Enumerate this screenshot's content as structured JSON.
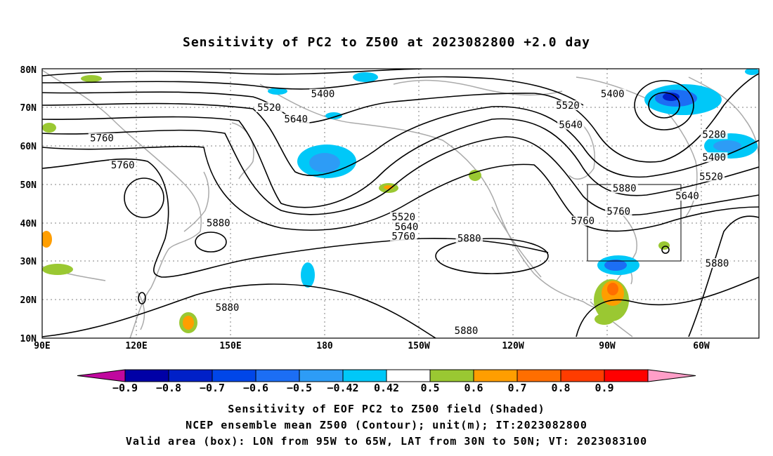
{
  "title": "Sensitivity of PC2 to Z500 at 2023082800 +2.0 day",
  "lat_labels": [
    "80N",
    "70N",
    "60N",
    "50N",
    "40N",
    "30N",
    "20N",
    "10N"
  ],
  "lon_labels": [
    "90E",
    "120E",
    "150E",
    "180",
    "150W",
    "120W",
    "90W",
    "60W"
  ],
  "contour_labels": [
    {
      "text": "5400",
      "lon": 184,
      "lat": 73.5
    },
    {
      "text": "5520",
      "lon": 166,
      "lat": 70
    },
    {
      "text": "5640",
      "lon": 175,
      "lat": 67
    },
    {
      "text": "5760",
      "lon": 110,
      "lat": 62
    },
    {
      "text": "5760",
      "lon": 117,
      "lat": 55
    },
    {
      "text": "5880",
      "lon": 149,
      "lat": 40
    },
    {
      "text": "5880",
      "lon": 152,
      "lat": 18
    },
    {
      "text": "5520",
      "lon": 266,
      "lat": 70.5
    },
    {
      "text": "5400",
      "lon": 281,
      "lat": 73.5
    },
    {
      "text": "5640",
      "lon": 267,
      "lat": 65.5
    },
    {
      "text": "5520",
      "lon": 211,
      "lat": 41.5
    },
    {
      "text": "5640",
      "lon": 212,
      "lat": 39
    },
    {
      "text": "5760",
      "lon": 211,
      "lat": 36.5
    },
    {
      "text": "5880",
      "lon": 233,
      "lat": 36
    },
    {
      "text": "5760",
      "lon": 271,
      "lat": 40.5
    },
    {
      "text": "5880",
      "lon": 285,
      "lat": 49
    },
    {
      "text": "5760",
      "lon": 283,
      "lat": 43
    },
    {
      "text": "5280",
      "lon": 315,
      "lat": 63
    },
    {
      "text": "5400",
      "lon": 315,
      "lat": 57
    },
    {
      "text": "5520",
      "lon": 314,
      "lat": 52
    },
    {
      "text": "5640",
      "lon": 306,
      "lat": 47
    },
    {
      "text": "5880",
      "lon": 316,
      "lat": 29.5
    },
    {
      "text": "5880",
      "lon": 232,
      "lat": 12
    }
  ],
  "colorbar": {
    "labels": [
      "-0.9",
      "-0.8",
      "-0.7",
      "-0.6",
      "-0.5",
      "-0.42",
      "0.42",
      "0.5",
      "0.6",
      "0.7",
      "0.8",
      "0.9"
    ],
    "colors": [
      "#c0089e",
      "#0000a6",
      "#0020c8",
      "#0046e8",
      "#1c6ef4",
      "#2d9cf6",
      "#00c8f8",
      "#ffffff",
      "#9ac832",
      "#ff9e00",
      "#ff6e00",
      "#ff3c00",
      "#ff0000",
      "#ff9ec8"
    ]
  },
  "caption": [
    "Sensitivity of EOF PC2 to Z500 field (Shaded)",
    "NCEP ensemble mean Z500 (Contour); unit(m); IT:2023082800",
    "Valid area (box): LON from 95W to 65W, LAT from 30N to 50N; VT: 2023083100"
  ],
  "valid_box": {
    "lon_min": 265,
    "lon_max": 295,
    "lat_min": 30,
    "lat_max": 50
  }
}
